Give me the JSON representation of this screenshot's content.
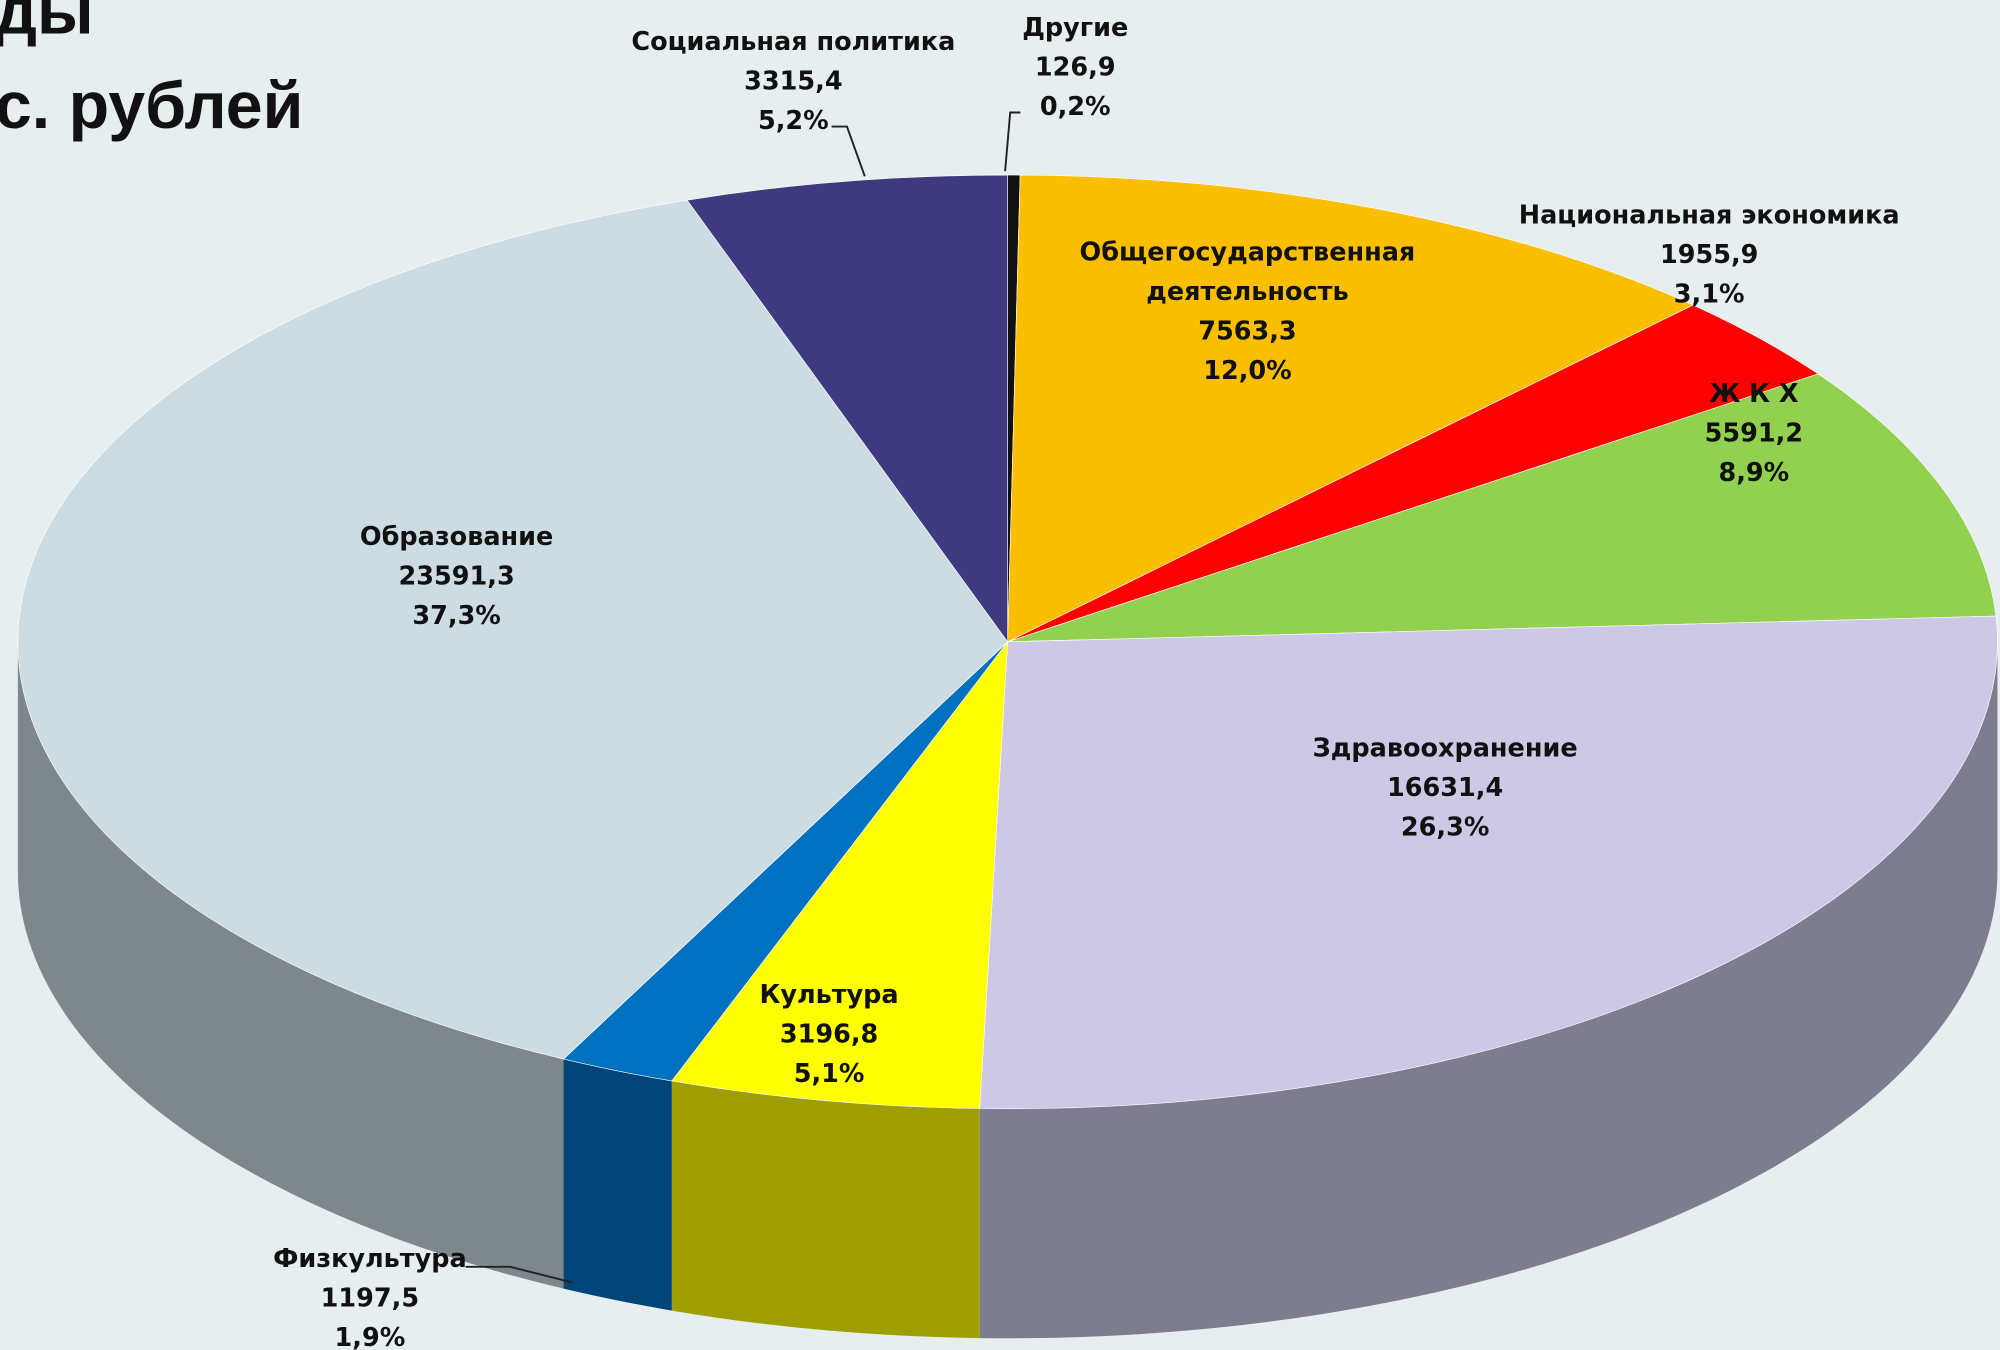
{
  "chart_data": {
    "type": "pie3d",
    "title_lines": [
      "ды",
      "с. рублей"
    ],
    "categories": [
      "Другие",
      "Общегосударственная деятельность",
      "Национальная экономика",
      "Ж К Х",
      "Здравоохранение",
      "Культура",
      "Физкультура",
      "Образование",
      "Социальная политика"
    ],
    "values": [
      126.9,
      7563.3,
      1955.9,
      5591.2,
      16631.4,
      3196.8,
      1197.5,
      23591.3,
      3315.4
    ],
    "value_labels": [
      "126,9",
      "7563,3",
      "1955,9",
      "5591,2",
      "16631,4",
      "3196,8",
      "1197,5",
      "23591,3",
      "3315,4"
    ],
    "percents": [
      0.2,
      12.0,
      3.1,
      8.9,
      26.3,
      5.1,
      1.9,
      37.3,
      5.2
    ],
    "percent_labels": [
      "0,2%",
      "12,0%",
      "3,1%",
      "8,9%",
      "26,3%",
      "5,1%",
      "1,9%",
      "37,3%",
      "5,2%"
    ],
    "colors": [
      "#111111",
      "#fbbf00",
      "#ff0000",
      "#92d050",
      "#ccc8e6",
      "#ffff00",
      "#0070c0",
      "#ccdce2",
      "#3f3a80"
    ]
  }
}
